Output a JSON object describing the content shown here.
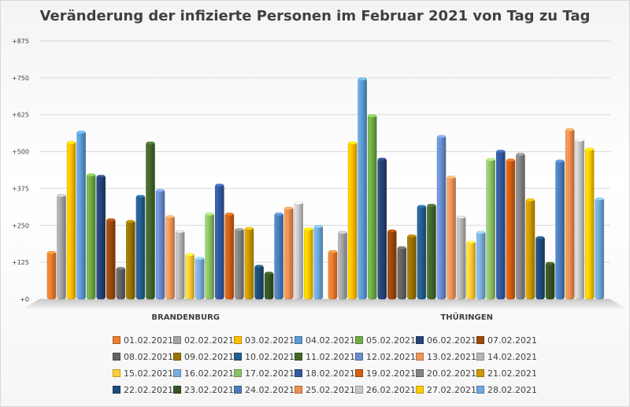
{
  "chart_data": {
    "type": "bar",
    "title": "Veränderung der infizierte Personen im Februar 2021 von Tag zu Tag",
    "categories": [
      "BRANDENBURG",
      "THÜRINGEN"
    ],
    "ylim": [
      0,
      875
    ],
    "yticks": [
      "+0",
      "+125",
      "+250",
      "+375",
      "+500",
      "+625",
      "+750",
      "+875"
    ],
    "ytick_values": [
      0,
      125,
      250,
      375,
      500,
      625,
      750,
      875
    ],
    "grid": true,
    "legend_position": "bottom",
    "palette": [
      "#ed7d31",
      "#a5a5a5",
      "#ffc000",
      "#5b9bd5",
      "#70ad47",
      "#264478",
      "#9e480e",
      "#636363",
      "#997300",
      "#255e91",
      "#43682b",
      "#698ed0",
      "#f1975a",
      "#b7b7b7",
      "#ffcd33",
      "#7cafdd",
      "#8cc168",
      "#335aa1",
      "#d26012",
      "#848484",
      "#cc9a00",
      "#1e4e79",
      "#375623",
      "#4a7ebb",
      "#f08f4f",
      "#c9c9c9",
      "#ffcc00",
      "#6fa8dc"
    ],
    "series": [
      {
        "name": "01.02.2021",
        "values": [
          162,
          165
        ]
      },
      {
        "name": "02.02.2021",
        "values": [
          355,
          230
        ]
      },
      {
        "name": "03.02.2021",
        "values": [
          535,
          533
        ]
      },
      {
        "name": "04.02.2021",
        "values": [
          570,
          750
        ]
      },
      {
        "name": "05.02.2021",
        "values": [
          425,
          625
        ]
      },
      {
        "name": "06.02.2021",
        "values": [
          420,
          478
        ]
      },
      {
        "name": "07.02.2021",
        "values": [
          273,
          235
        ]
      },
      {
        "name": "08.02.2021",
        "values": [
          108,
          178
        ]
      },
      {
        "name": "09.02.2021",
        "values": [
          267,
          218
        ]
      },
      {
        "name": "10.02.2021",
        "values": [
          352,
          318
        ]
      },
      {
        "name": "11.02.2021",
        "values": [
          533,
          322
        ]
      },
      {
        "name": "12.02.2021",
        "values": [
          372,
          555
        ]
      },
      {
        "name": "13.02.2021",
        "values": [
          283,
          417
        ]
      },
      {
        "name": "14.02.2021",
        "values": [
          233,
          282
        ]
      },
      {
        "name": "15.02.2021",
        "values": [
          155,
          197
        ]
      },
      {
        "name": "16.02.2021",
        "values": [
          142,
          230
        ]
      },
      {
        "name": "17.02.2021",
        "values": [
          292,
          477
        ]
      },
      {
        "name": "18.02.2021",
        "values": [
          390,
          505
        ]
      },
      {
        "name": "19.02.2021",
        "values": [
          292,
          475
        ]
      },
      {
        "name": "20.02.2021",
        "values": [
          240,
          495
        ]
      },
      {
        "name": "21.02.2021",
        "values": [
          243,
          340
        ]
      },
      {
        "name": "22.02.2021",
        "values": [
          115,
          212
        ]
      },
      {
        "name": "23.02.2021",
        "values": [
          92,
          125
        ]
      },
      {
        "name": "24.02.2021",
        "values": [
          292,
          472
        ]
      },
      {
        "name": "25.02.2021",
        "values": [
          312,
          578
        ]
      },
      {
        "name": "26.02.2021",
        "values": [
          330,
          543
        ]
      },
      {
        "name": "27.02.2021",
        "values": [
          242,
          512
        ]
      },
      {
        "name": "28.02.2021",
        "values": [
          250,
          343
        ]
      }
    ]
  }
}
